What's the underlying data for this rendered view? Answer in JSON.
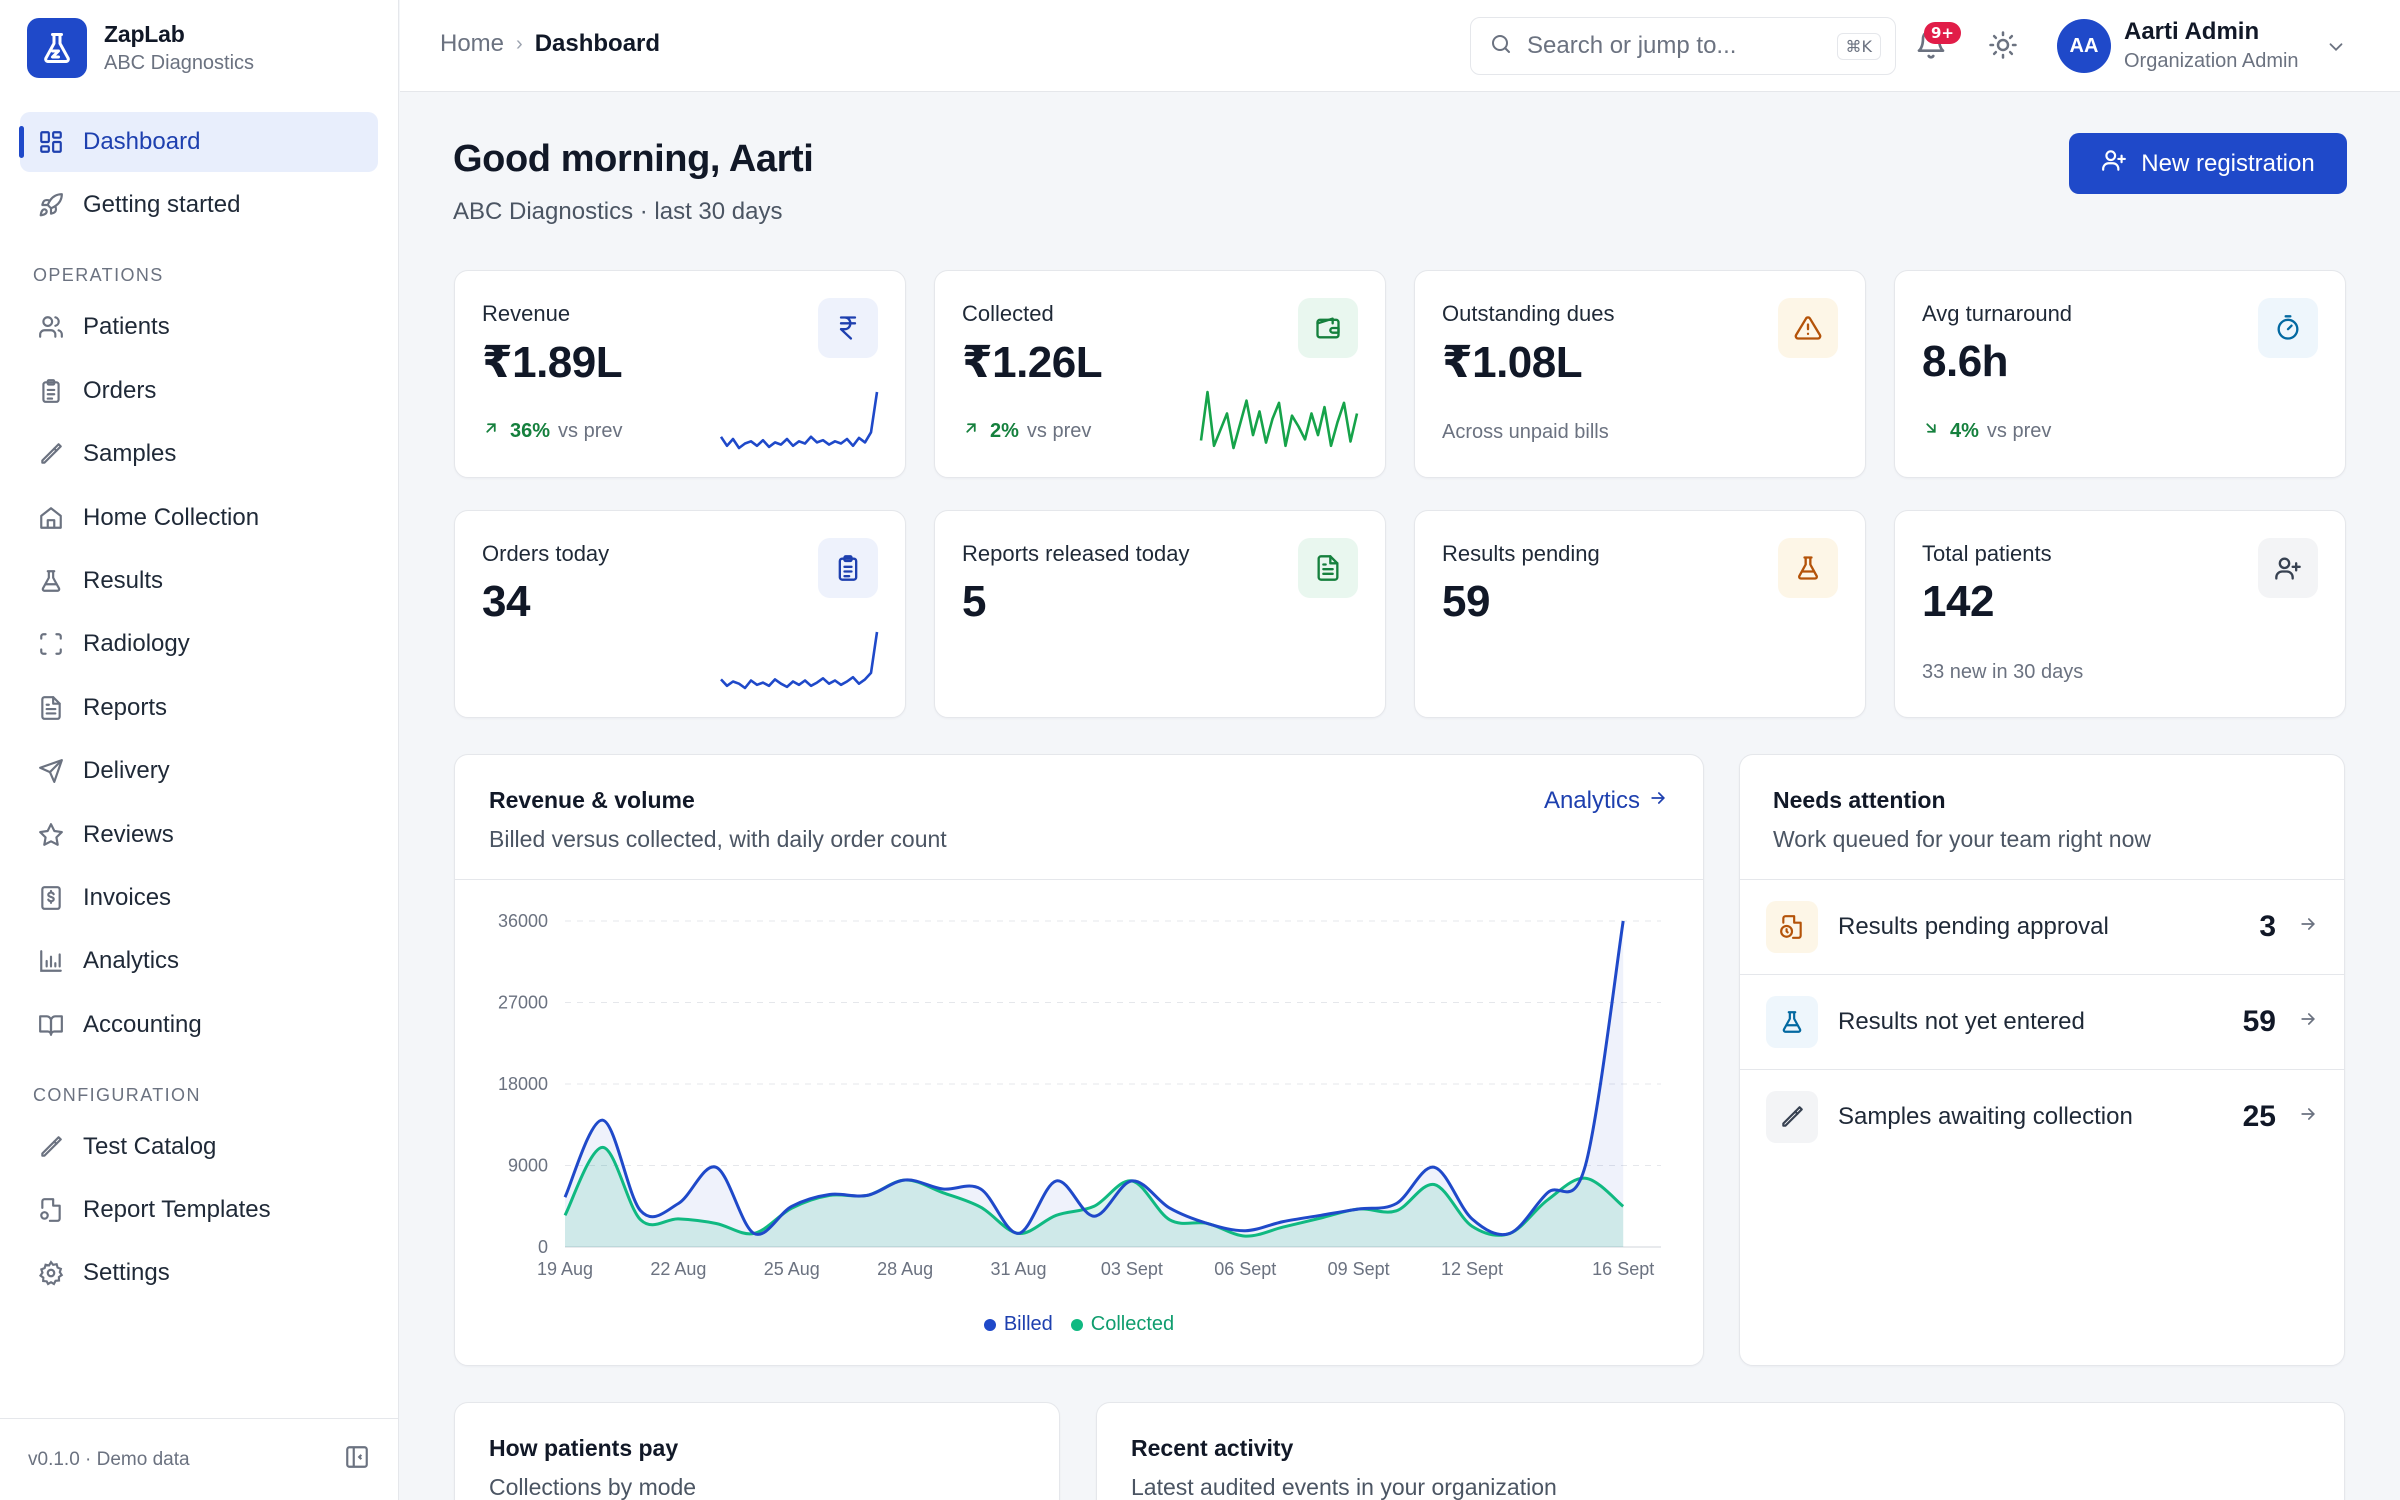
{
  "brand": {
    "name": "ZapLab",
    "org": "ABC Diagnostics"
  },
  "nav": {
    "main": [
      {
        "label": "Dashboard",
        "icon": "grid-icon",
        "active": true
      },
      {
        "label": "Getting started",
        "icon": "rocket-icon"
      }
    ],
    "operations_title": "OPERATIONS",
    "operations": [
      {
        "label": "Patients",
        "icon": "users-icon"
      },
      {
        "label": "Orders",
        "icon": "clipboard-icon"
      },
      {
        "label": "Samples",
        "icon": "pipette-icon"
      },
      {
        "label": "Home Collection",
        "icon": "home-icon"
      },
      {
        "label": "Results",
        "icon": "flask-icon"
      },
      {
        "label": "Radiology",
        "icon": "scan-icon"
      },
      {
        "label": "Reports",
        "icon": "file-text-icon"
      },
      {
        "label": "Delivery",
        "icon": "send-icon"
      },
      {
        "label": "Reviews",
        "icon": "star-icon"
      },
      {
        "label": "Invoices",
        "icon": "invoice-icon"
      },
      {
        "label": "Analytics",
        "icon": "bar-chart-icon"
      },
      {
        "label": "Accounting",
        "icon": "book-icon"
      }
    ],
    "configuration_title": "CONFIGURATION",
    "configuration": [
      {
        "label": "Test Catalog",
        "icon": "pipette-icon"
      },
      {
        "label": "Report Templates",
        "icon": "file-cog-icon"
      },
      {
        "label": "Settings",
        "icon": "gear-icon"
      }
    ],
    "footer_version": "v0.1.0 · Demo data"
  },
  "topbar": {
    "breadcrumb": [
      "Home",
      "Dashboard"
    ],
    "search_placeholder": "Search or jump to...",
    "search_shortcut": "⌘K",
    "notifications_badge": "9+",
    "user_initials": "AA",
    "user_name": "Aarti Admin",
    "user_role": "Organization Admin"
  },
  "header": {
    "greeting": "Good morning, Aarti",
    "subtitle": "ABC Diagnostics · last 30 days",
    "new_registration_label": "New registration"
  },
  "kpis": [
    {
      "label": "Revenue",
      "value": "₹1.89L",
      "delta_pct": "36%",
      "delta_dir": "up",
      "delta_suffix": "vs prev",
      "icon": "rupee-icon",
      "icon_bg": "#eef2fc",
      "icon_color": "#1e40af",
      "spark": "blue",
      "spark_values": [
        30,
        22,
        28,
        20,
        24,
        26,
        22,
        27,
        21,
        25,
        23,
        28,
        22,
        26,
        24,
        30,
        25,
        27,
        23,
        26,
        24,
        28,
        22,
        29,
        25,
        34,
        70
      ]
    },
    {
      "label": "Collected",
      "value": "₹1.26L",
      "delta_pct": "2%",
      "delta_dir": "up",
      "delta_suffix": "vs prev",
      "icon": "wallet-icon",
      "icon_bg": "#e9f7ef",
      "icon_color": "#15803d",
      "spark": "green",
      "spark_values": [
        35,
        80,
        30,
        45,
        60,
        28,
        50,
        72,
        40,
        62,
        33,
        55,
        70,
        30,
        58,
        48,
        36,
        60,
        40,
        66,
        30,
        52,
        70,
        34,
        60
      ]
    },
    {
      "label": "Outstanding dues",
      "value": "₹1.08L",
      "note": "Across unpaid bills",
      "icon": "alert-triangle-icon",
      "icon_bg": "#fdf6e7",
      "icon_color": "#b45309"
    },
    {
      "label": "Avg turnaround",
      "value": "8.6h",
      "delta_pct": "4%",
      "delta_dir": "down",
      "delta_suffix": "vs prev",
      "icon": "timer-icon",
      "icon_bg": "#eef6fc",
      "icon_color": "#0369a1"
    },
    {
      "label": "Orders today",
      "value": "34",
      "icon": "clipboard-icon",
      "icon_bg": "#eef2fc",
      "icon_color": "#1e40af",
      "spark": "blue",
      "spark_values": [
        28,
        22,
        26,
        24,
        20,
        27,
        23,
        25,
        22,
        28,
        24,
        21,
        26,
        23,
        27,
        22,
        25,
        29,
        24,
        27,
        23,
        26,
        30,
        24,
        28,
        34,
        72
      ]
    },
    {
      "label": "Reports released today",
      "value": "5",
      "icon": "file-text-icon",
      "icon_bg": "#e9f7ef",
      "icon_color": "#15803d"
    },
    {
      "label": "Results pending",
      "value": "59",
      "icon": "flask-icon",
      "icon_bg": "#fdf6e7",
      "icon_color": "#b45309"
    },
    {
      "label": "Total patients",
      "value": "142",
      "note": "33 new in 30 days",
      "icon": "user-plus-icon",
      "icon_bg": "#f3f4f6",
      "icon_color": "#374151"
    }
  ],
  "revenue_panel": {
    "title": "Revenue & volume",
    "subtitle": "Billed versus collected, with daily order count",
    "link_label": "Analytics"
  },
  "chart_data": {
    "type": "area",
    "x": [
      "19 Aug",
      "20 Aug",
      "21 Aug",
      "22 Aug",
      "23 Aug",
      "24 Aug",
      "25 Aug",
      "26 Aug",
      "27 Aug",
      "28 Aug",
      "29 Aug",
      "30 Aug",
      "31 Aug",
      "01 Sept",
      "02 Sept",
      "03 Sept",
      "04 Sept",
      "05 Sept",
      "06 Sept",
      "07 Sept",
      "08 Sept",
      "09 Sept",
      "10 Sept",
      "11 Sept",
      "12 Sept",
      "13 Sept",
      "14 Sept",
      "15 Sept",
      "16 Sept",
      "17 Sept"
    ],
    "tick_labels": [
      "19 Aug",
      "22 Aug",
      "25 Aug",
      "28 Aug",
      "31 Aug",
      "03 Sept",
      "06 Sept",
      "09 Sept",
      "12 Sept",
      "16 Sept"
    ],
    "series": [
      {
        "name": "Billed",
        "color": "#1f49c9",
        "values": [
          5500,
          14000,
          4000,
          4800,
          8800,
          1500,
          4500,
          5800,
          5700,
          7400,
          6400,
          6400,
          1500,
          7300,
          3400,
          7300,
          4300,
          2600,
          1800,
          2800,
          3500,
          4200,
          4800,
          8800,
          3100,
          1500,
          6000,
          9000,
          36000,
          0
        ]
      },
      {
        "name": "Collected",
        "color": "#10b981",
        "values": [
          3500,
          11000,
          3000,
          3100,
          2600,
          1500,
          4300,
          5700,
          5700,
          7400,
          6000,
          4400,
          1500,
          3500,
          4500,
          7300,
          3000,
          2600,
          1200,
          2200,
          3200,
          4200,
          4000,
          6900,
          2300,
          1500,
          5200,
          7600,
          4500,
          0
        ]
      }
    ],
    "ylim": [
      0,
      36000
    ],
    "yticks": [
      0,
      9000,
      18000,
      27000,
      36000
    ],
    "grid": true,
    "legend_position": "bottom-center"
  },
  "attention_panel": {
    "title": "Needs attention",
    "subtitle": "Work queued for your team right now",
    "items": [
      {
        "label": "Results pending approval",
        "count": "3",
        "icon": "file-clock-icon",
        "icon_bg": "#fdf6e7",
        "icon_color": "#b45309"
      },
      {
        "label": "Results not yet entered",
        "count": "59",
        "icon": "flask-icon",
        "icon_bg": "#eef6fc",
        "icon_color": "#0369a1"
      },
      {
        "label": "Samples awaiting collection",
        "count": "25",
        "icon": "pipette-icon",
        "icon_bg": "#f3f4f6",
        "icon_color": "#374151"
      }
    ]
  },
  "payments_panel": {
    "title": "How patients pay",
    "subtitle": "Collections by mode"
  },
  "activity_panel": {
    "title": "Recent activity",
    "subtitle": "Latest audited events in your organization"
  }
}
